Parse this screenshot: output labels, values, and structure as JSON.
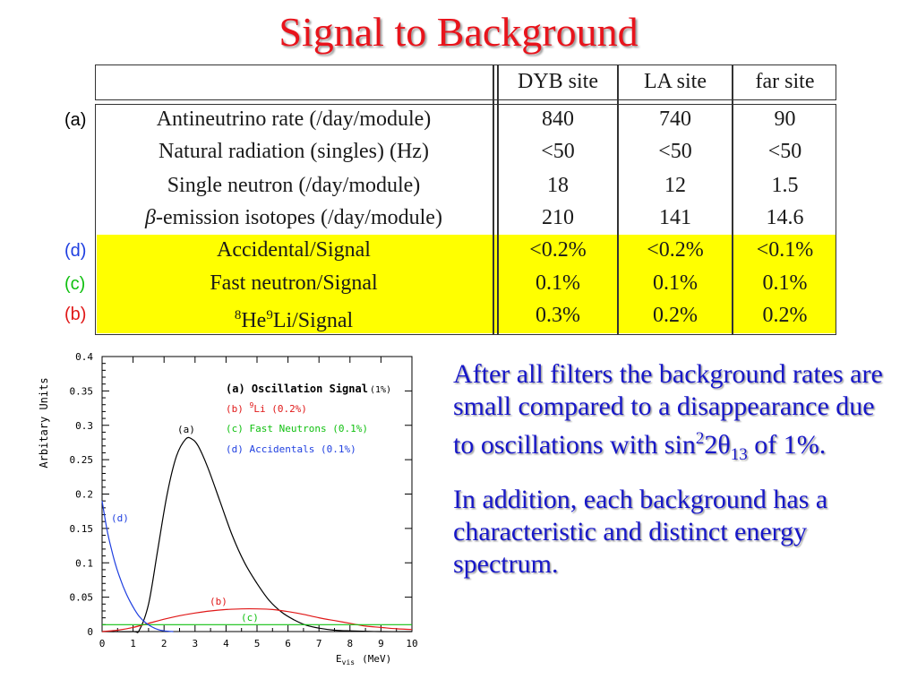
{
  "title": "Signal to Background",
  "table": {
    "headers": [
      "DYB site",
      "LA site",
      "far site"
    ],
    "rows": [
      {
        "tag": "(a)",
        "tag_color": "#000000",
        "label": "Antineutrino rate (/day/module)",
        "values": [
          "840",
          "740",
          "90"
        ],
        "highlight": false
      },
      {
        "tag": "",
        "tag_color": "#000000",
        "label": "Natural radiation (singles) (Hz)",
        "values": [
          "<50",
          "<50",
          "<50"
        ],
        "highlight": false
      },
      {
        "tag": "",
        "tag_color": "#000000",
        "label": "Single neutron (/day/module)",
        "values": [
          "18",
          "12",
          "1.5"
        ],
        "highlight": false
      },
      {
        "tag": "",
        "tag_color": "#000000",
        "label_prefix": "β",
        "label": "-emission isotopes (/day/module)",
        "values": [
          "210",
          "141",
          "14.6"
        ],
        "highlight": false
      },
      {
        "tag": "(d)",
        "tag_color": "#1f3fe0",
        "label": "Accidental/Signal",
        "values": [
          "<0.2%",
          "<0.2%",
          "<0.1%"
        ],
        "highlight": true
      },
      {
        "tag": "(c)",
        "tag_color": "#10c010",
        "label": "Fast neutron/Signal",
        "values": [
          "0.1%",
          "0.1%",
          "0.1%"
        ],
        "highlight": true
      },
      {
        "tag": "(b)",
        "tag_color": "#e01818",
        "label_sup1": "8",
        "label_mid": "He",
        "label_sup2": "9",
        "label": "Li/Signal",
        "values": [
          "0.3%",
          "0.2%",
          "0.2%"
        ],
        "highlight": true
      }
    ],
    "highlight_color": "#ffff00"
  },
  "chart_data": {
    "type": "line",
    "ylabel": "Arbitary Units",
    "xlabel_main": "E",
    "xlabel_sub": "vis",
    "xlabel_unit": "(MeV)",
    "xlim": [
      0,
      10
    ],
    "ylim": [
      0,
      0.4
    ],
    "xticks": [
      "0",
      "1",
      "2",
      "3",
      "4",
      "5",
      "6",
      "7",
      "8",
      "9",
      "10"
    ],
    "yticks": [
      "0",
      "0.05",
      "0.1",
      "0.15",
      "0.2",
      "0.25",
      "0.3",
      "0.35",
      "0.4"
    ],
    "legend": [
      {
        "text": "(a) Oscillation Signal",
        "extra": "(1%)",
        "color": "#000000"
      },
      {
        "text_prefix": "(b) ",
        "sup": "9",
        "text": "Li (0.2%)",
        "color": "#e01818"
      },
      {
        "text": "(c) Fast Neutrons (0.1%)",
        "color": "#10c010"
      },
      {
        "text": "(d) Accidentals (0.1%)",
        "color": "#1f3fe0"
      }
    ],
    "curve_labels": [
      "(a)",
      "(b)",
      "(c)",
      "(d)"
    ],
    "series": [
      {
        "name": "(a) Oscillation Signal",
        "color": "#000000",
        "points": [
          [
            0,
            0
          ],
          [
            1.0,
            0
          ],
          [
            1.2,
            0.002
          ],
          [
            1.5,
            0.04
          ],
          [
            1.8,
            0.12
          ],
          [
            2.1,
            0.2
          ],
          [
            2.4,
            0.255
          ],
          [
            2.7,
            0.28
          ],
          [
            2.9,
            0.28
          ],
          [
            3.1,
            0.27
          ],
          [
            3.4,
            0.24
          ],
          [
            3.8,
            0.19
          ],
          [
            4.2,
            0.14
          ],
          [
            4.6,
            0.1
          ],
          [
            5.0,
            0.07
          ],
          [
            5.4,
            0.045
          ],
          [
            5.8,
            0.028
          ],
          [
            6.2,
            0.017
          ],
          [
            6.6,
            0.009
          ],
          [
            7.0,
            0.005
          ],
          [
            7.5,
            0.002
          ],
          [
            8.0,
            0.001
          ],
          [
            9.0,
            0
          ],
          [
            10,
            0
          ]
        ]
      },
      {
        "name": "(b) 9Li (0.2%)",
        "color": "#e01818",
        "points": [
          [
            0,
            0
          ],
          [
            0.5,
            0.002
          ],
          [
            1.0,
            0.006
          ],
          [
            1.5,
            0.012
          ],
          [
            2.0,
            0.018
          ],
          [
            2.5,
            0.023
          ],
          [
            3.0,
            0.027
          ],
          [
            3.5,
            0.03
          ],
          [
            4.0,
            0.032
          ],
          [
            4.5,
            0.033
          ],
          [
            5.0,
            0.033
          ],
          [
            5.5,
            0.032
          ],
          [
            6.0,
            0.029
          ],
          [
            6.5,
            0.025
          ],
          [
            7.0,
            0.02
          ],
          [
            7.5,
            0.016
          ],
          [
            8.0,
            0.012
          ],
          [
            8.5,
            0.008
          ],
          [
            9.0,
            0.006
          ],
          [
            9.5,
            0.004
          ],
          [
            10,
            0.003
          ]
        ]
      },
      {
        "name": "(c) Fast Neutrons (0.1%)",
        "color": "#10c010",
        "points": [
          [
            0,
            0.01
          ],
          [
            10,
            0.01
          ]
        ]
      },
      {
        "name": "(d) Accidentals (0.1%)",
        "color": "#1f3fe0",
        "points": [
          [
            0,
            0.19
          ],
          [
            0.15,
            0.15
          ],
          [
            0.3,
            0.12
          ],
          [
            0.45,
            0.095
          ],
          [
            0.6,
            0.075
          ],
          [
            0.75,
            0.058
          ],
          [
            0.9,
            0.044
          ],
          [
            1.05,
            0.032
          ],
          [
            1.2,
            0.022
          ],
          [
            1.4,
            0.013
          ],
          [
            1.6,
            0.007
          ],
          [
            1.8,
            0.003
          ],
          [
            2.0,
            0.001
          ],
          [
            2.3,
            0
          ]
        ]
      }
    ]
  },
  "notes": {
    "p1_a": "After all filters the background rates are small compared to a disappearance due to oscillations with sin",
    "p1_sup": "2",
    "p1_b": "2θ",
    "p1_sub": "13",
    "p1_c": " of 1%.",
    "p2": "In addition, each background has a characteristic and distinct energy spectrum."
  }
}
